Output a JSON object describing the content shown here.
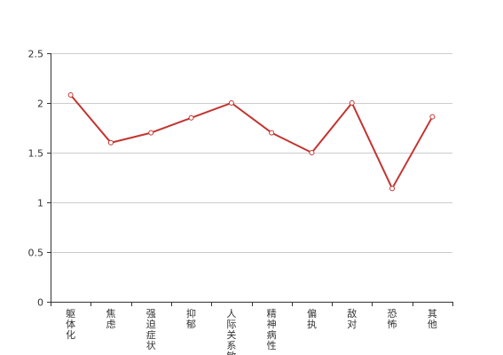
{
  "chart_data": {
    "type": "line",
    "categories": [
      "躯体化",
      "焦虑",
      "强迫症状",
      "抑郁",
      "人际关系敏感",
      "精神病性",
      "偏执",
      "敌对",
      "恐怖",
      "其他"
    ],
    "series": [
      {
        "values": [
          2.08,
          1.6,
          1.7,
          1.85,
          2.0,
          1.7,
          1.5,
          2.0,
          1.14,
          1.86
        ]
      }
    ],
    "ylim": [
      0,
      2.5
    ],
    "yticks": [
      "0",
      "0.5",
      "1",
      "1.5",
      "2",
      "2.5"
    ],
    "grid": true,
    "colors": {
      "line": "#c23531",
      "grid": "#cccccc",
      "axis": "#333333"
    }
  }
}
